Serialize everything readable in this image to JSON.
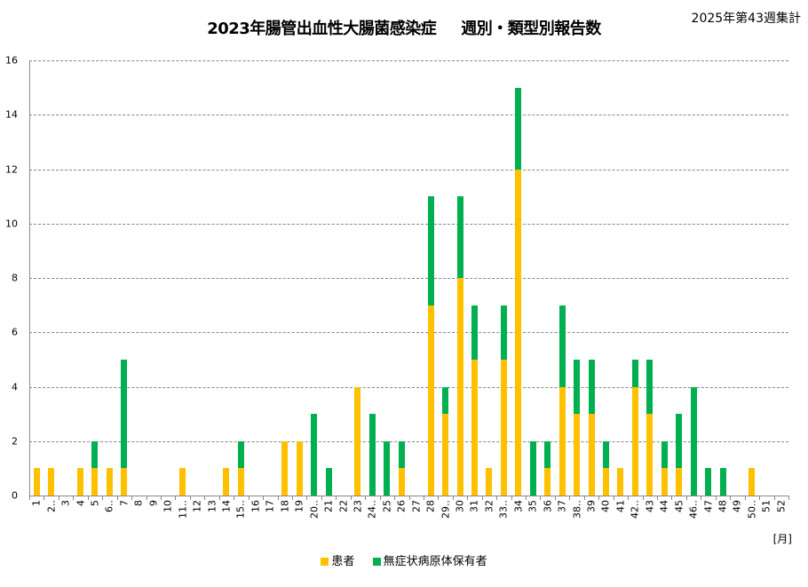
{
  "header": {
    "title_part1": "2023年腸管出血性大腸菌感染症",
    "title_part2": "週別・類型別報告数",
    "subtitle": "2025年第43週集計"
  },
  "axis": {
    "x_unit": "[月]",
    "y_ticks": [
      "0",
      "2",
      "4",
      "6",
      "8",
      "10",
      "12",
      "14",
      "16"
    ]
  },
  "legend": {
    "patient": "患者",
    "asymptomatic": "無症状病原体保有者"
  },
  "colors": {
    "patient": "#FFC000",
    "asymptomatic": "#00B050",
    "grid": "#888888"
  },
  "chart_data": {
    "type": "bar",
    "stacked": true,
    "title": "2023年腸管出血性大腸菌感染症　週別・類型別報告数",
    "subtitle": "2025年第43週集計",
    "xlabel": "[月]",
    "ylabel": "",
    "ylim": [
      0,
      16
    ],
    "yticks": [
      0,
      2,
      4,
      6,
      8,
      10,
      12,
      14,
      16
    ],
    "grid": true,
    "legend_position": "bottom",
    "categories": [
      "1",
      "2..",
      "3",
      "4",
      "5",
      "6..",
      "7",
      "8",
      "9",
      "10",
      "11..",
      "12",
      "13",
      "14",
      "15..",
      "16",
      "17",
      "18",
      "19",
      "20..",
      "21",
      "22",
      "23",
      "24..",
      "25",
      "26",
      "27",
      "28",
      "29..",
      "30",
      "31",
      "32",
      "33..",
      "34",
      "35",
      "36",
      "37",
      "38..",
      "39",
      "40",
      "41",
      "42..",
      "43",
      "44",
      "45",
      "46..",
      "47",
      "48",
      "49",
      "50..",
      "51",
      "52"
    ],
    "series": [
      {
        "name": "患者",
        "color": "#FFC000",
        "values": [
          1,
          1,
          0,
          1,
          1,
          1,
          1,
          0,
          0,
          0,
          1,
          0,
          0,
          1,
          1,
          0,
          0,
          2,
          2,
          0,
          0,
          0,
          4,
          0,
          0,
          1,
          0,
          7,
          3,
          8,
          5,
          1,
          5,
          12,
          0,
          1,
          4,
          3,
          3,
          1,
          1,
          4,
          3,
          1,
          1,
          0,
          0,
          0,
          0,
          1,
          0,
          0
        ]
      },
      {
        "name": "無症状病原体保有者",
        "color": "#00B050",
        "values": [
          0,
          0,
          0,
          0,
          1,
          0,
          4,
          0,
          0,
          0,
          0,
          0,
          0,
          0,
          1,
          0,
          0,
          0,
          0,
          3,
          1,
          0,
          0,
          3,
          2,
          1,
          0,
          4,
          1,
          3,
          2,
          0,
          2,
          3,
          2,
          1,
          3,
          2,
          2,
          1,
          0,
          1,
          2,
          1,
          2,
          4,
          1,
          1,
          0,
          0,
          0,
          0
        ]
      }
    ]
  }
}
